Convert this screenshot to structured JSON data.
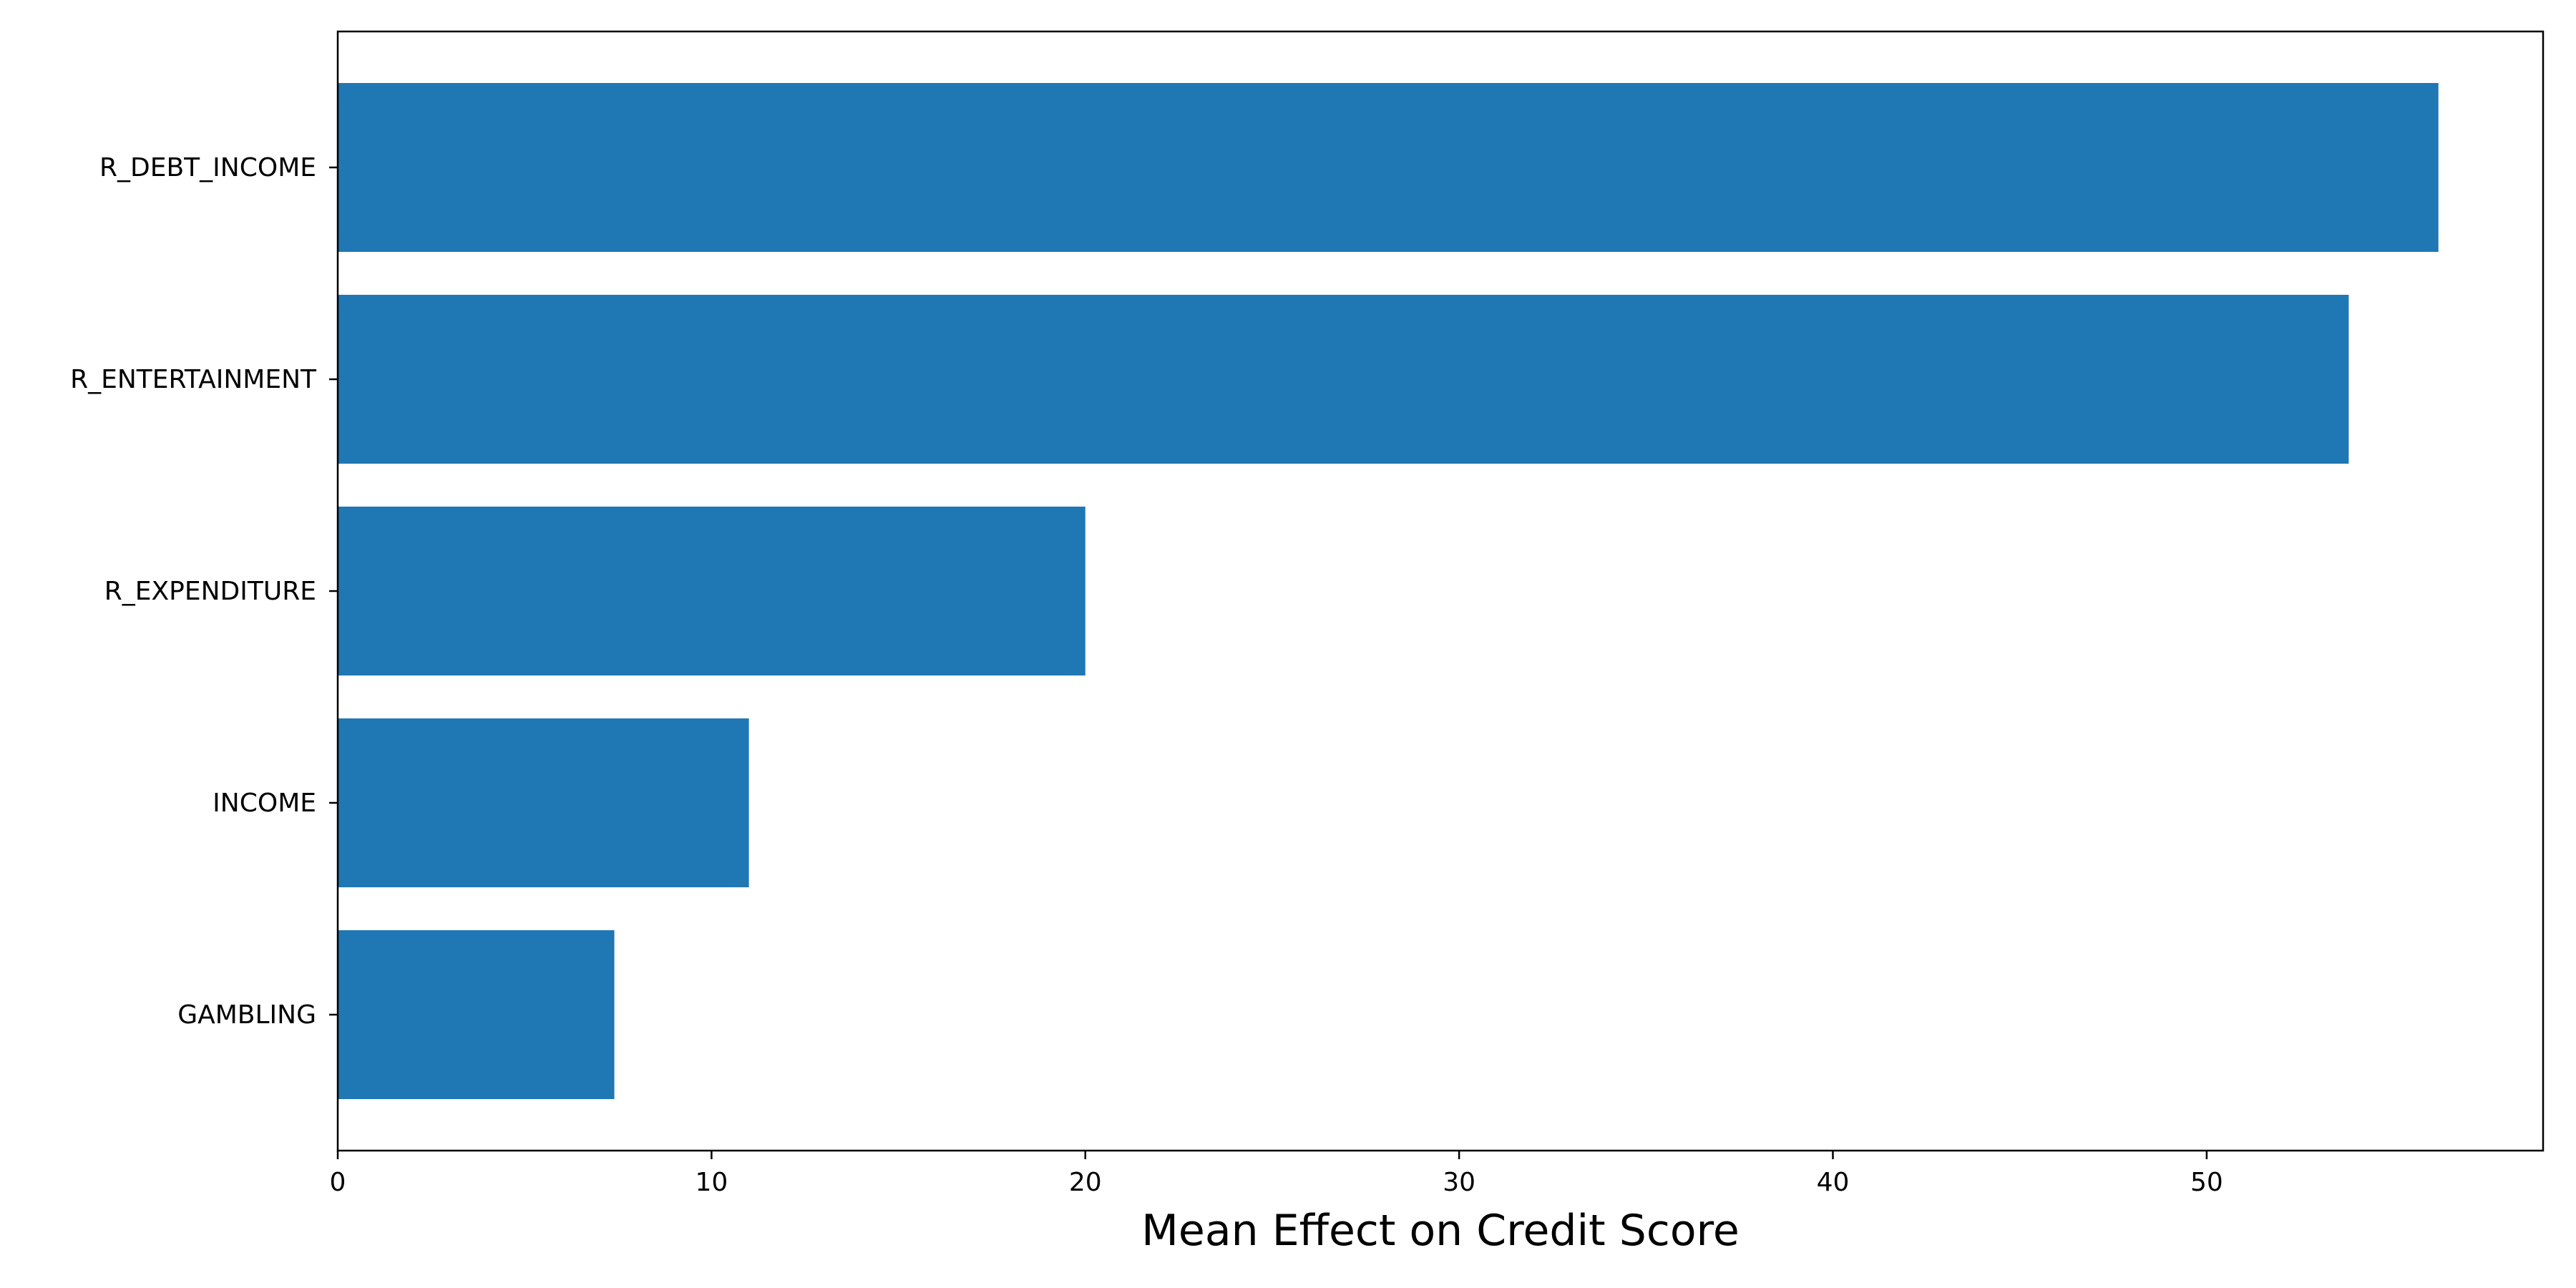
{
  "chart_data": {
    "type": "bar",
    "orientation": "horizontal",
    "categories": [
      "R_DEBT_INCOME",
      "R_ENTERTAINMENT",
      "R_EXPENDITURE",
      "INCOME",
      "GAMBLING"
    ],
    "values": [
      56.2,
      53.8,
      20.0,
      11.0,
      7.4
    ],
    "xlabel": "Mean Effect on Credit Score",
    "ylabel": "",
    "xlim": [
      0,
      59
    ],
    "xticks": [
      0,
      10,
      20,
      30,
      40,
      50
    ],
    "bar_color": "#1f77b4",
    "grid": false,
    "legend": "none"
  }
}
